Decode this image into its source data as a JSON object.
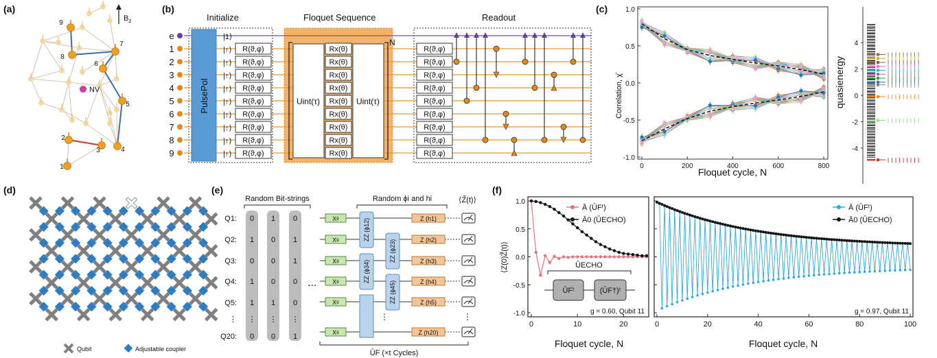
{
  "panels": {
    "a": {
      "label": "(a)",
      "axis": "B",
      "axis_sub": "z",
      "nv": "NV",
      "sites": [
        "1",
        "2",
        "3",
        "4",
        "5",
        "6",
        "7",
        "8",
        "9"
      ]
    },
    "b": {
      "label": "(b)",
      "sections": [
        "Initialize",
        "Floquet Sequence",
        "Readout"
      ],
      "qubits": [
        "e",
        "1",
        "2",
        "3",
        "4",
        "5",
        "6",
        "7",
        "8",
        "9"
      ],
      "pulsepol": "PulsePol",
      "ket_e": "|1⟩",
      "ket_n": "|↑⟩",
      "gate_r": "R(ϑ,φ)",
      "gate_rx": "Rx(θ)",
      "gate_u": "Uint(τ)",
      "repeat": "N"
    },
    "c": {
      "label": "(c)",
      "ylabel": "Correlation, χ̄",
      "xlabel": "Floquet cycle, N",
      "right_label": "quasienergy",
      "xticks": [
        "0",
        "200",
        "400",
        "600",
        "800"
      ],
      "yticks": [
        "1.0",
        "0.5",
        "0.0",
        "-0.5",
        "-1.0"
      ],
      "qticks": [
        "4",
        "2",
        "0",
        "-2",
        "-4"
      ]
    },
    "d": {
      "label": "(d)",
      "legend_qubit": "Qubit",
      "legend_coupler": "Adjustable coupler"
    },
    "e": {
      "label": "(e)",
      "header_bits": "Random Bit-strings",
      "header_phi": "Random ϕi and hi",
      "header_z": "⟨Z̃(t)⟩",
      "qubit_labels": [
        "Q1:",
        "Q2:",
        "Q3:",
        "Q4:",
        "Q5:",
        "⋮",
        "Q20:"
      ],
      "bits": [
        [
          "0",
          "1",
          "0"
        ],
        [
          "1",
          "0",
          "1"
        ],
        [
          "0",
          "0",
          "1"
        ],
        [
          "1",
          "0",
          "0"
        ],
        [
          "1",
          "1",
          "0"
        ],
        [
          "⋮",
          "⋮",
          "⋮"
        ],
        [
          "0",
          "0",
          "1"
        ]
      ],
      "ellipsis": "...",
      "xg": "Xᵍ",
      "zz_labels": [
        "ZZ (ϕ12)",
        "ZZ (ϕ23)",
        "ZZ (ϕ34)",
        "ZZ (ϕ45)"
      ],
      "z_labels": [
        "Z (h1)",
        "Z (h2)",
        "Z (h3)",
        "Z (h4)",
        "Z (h5)",
        "Z (h20)"
      ],
      "footer": "ÛF (×t Cycles)"
    },
    "f": {
      "label": "(f)",
      "ylabel": "⟨Z(0)Z̃(t)⟩",
      "left": {
        "legend1": "Ā (ÛFᵗ)",
        "legend2": "Ā0 (ÛECHO)",
        "inset_title": "ÛECHO",
        "inset_box1": "ÛFᵗ",
        "inset_box2": "(ÛF†)ᵗ",
        "note": "g = 0.60, Qubit 11",
        "xlabel": "Floquet cycle, N",
        "xticks": [
          "0",
          "10",
          "20"
        ],
        "yticks": [
          "1.0",
          "0.5",
          "0.0",
          "-0.5",
          "-1.0"
        ]
      },
      "right": {
        "legend1": "Ā (ÛFᵗ)",
        "legend2": "Ā0 (ÛECHO)",
        "note": "g = 0.97, Qubit 11",
        "xlabel": "Floquet cycle, N",
        "xticks": [
          "0",
          "20",
          "40",
          "60",
          "80",
          "100"
        ]
      }
    }
  },
  "colors": {
    "orange": "#f0a030",
    "blue": "#5b9bd5",
    "purple": "#6a3d9a",
    "pink": "#e8737a",
    "cyan": "#2aa9e0",
    "grey": "#8a8a8a"
  },
  "chart_data": [
    {
      "type": "line",
      "title": "",
      "xlabel": "Floquet cycle, N",
      "ylabel": "Correlation, χ̄",
      "xlim": [
        0,
        800
      ],
      "ylim": [
        -1.0,
        1.0
      ],
      "series": [
        {
          "x": [
            0,
            100,
            200,
            300,
            400,
            500,
            600,
            700,
            800
          ],
          "values": [
            0.8,
            0.6,
            0.45,
            0.37,
            0.32,
            0.27,
            0.23,
            0.18,
            0.12
          ]
        },
        {
          "x": [
            0,
            100,
            200,
            300,
            400,
            500,
            600,
            700,
            800
          ],
          "values": [
            -0.78,
            -0.62,
            -0.48,
            -0.38,
            -0.32,
            -0.27,
            -0.23,
            -0.18,
            -0.12
          ]
        }
      ]
    },
    {
      "type": "line",
      "xlabel": "Floquet cycle, N",
      "ylabel": "⟨Z(0)Z̃(t)⟩",
      "xlim": [
        0,
        25
      ],
      "ylim": [
        -1.0,
        1.0
      ],
      "series": [
        {
          "name": "Ā (ÛFᵗ)",
          "x": [
            0,
            1,
            2,
            3,
            4,
            5,
            6,
            7,
            8,
            9,
            10,
            11,
            12,
            13,
            14,
            15,
            16,
            17,
            18,
            19,
            20,
            21,
            22,
            23,
            24,
            25
          ],
          "values": [
            1.0,
            0.08,
            -0.33,
            0.02,
            -0.1,
            0.01,
            -0.03,
            0.0,
            -0.01,
            0.0,
            0,
            0,
            0,
            0,
            0,
            0,
            0,
            0,
            0,
            0,
            0,
            0,
            0,
            0,
            0,
            0
          ]
        },
        {
          "name": "Ā0 (ÛECHO)",
          "x": [
            0,
            1,
            2,
            3,
            4,
            5,
            6,
            7,
            8,
            9,
            10,
            11,
            12,
            13,
            14,
            15,
            16,
            17,
            18,
            19,
            20,
            21,
            22,
            23,
            24,
            25
          ],
          "values": [
            1.0,
            0.99,
            0.97,
            0.94,
            0.9,
            0.85,
            0.79,
            0.73,
            0.66,
            0.59,
            0.52,
            0.45,
            0.39,
            0.33,
            0.27,
            0.22,
            0.18,
            0.14,
            0.11,
            0.08,
            0.06,
            0.05,
            0.04,
            0.03,
            0.02,
            0.02
          ]
        }
      ]
    },
    {
      "type": "line",
      "xlabel": "Floquet cycle, N",
      "xlim": [
        0,
        100
      ],
      "ylim": [
        -1.0,
        1.0
      ],
      "series": [
        {
          "name": "Ā (ÛFᵗ)",
          "envelope_start": 0.97,
          "envelope_end": 0.18,
          "alternating": true
        },
        {
          "name": "Ā0 (ÛECHO)",
          "envelope_start": 0.98,
          "envelope_end": 0.18
        }
      ]
    }
  ]
}
